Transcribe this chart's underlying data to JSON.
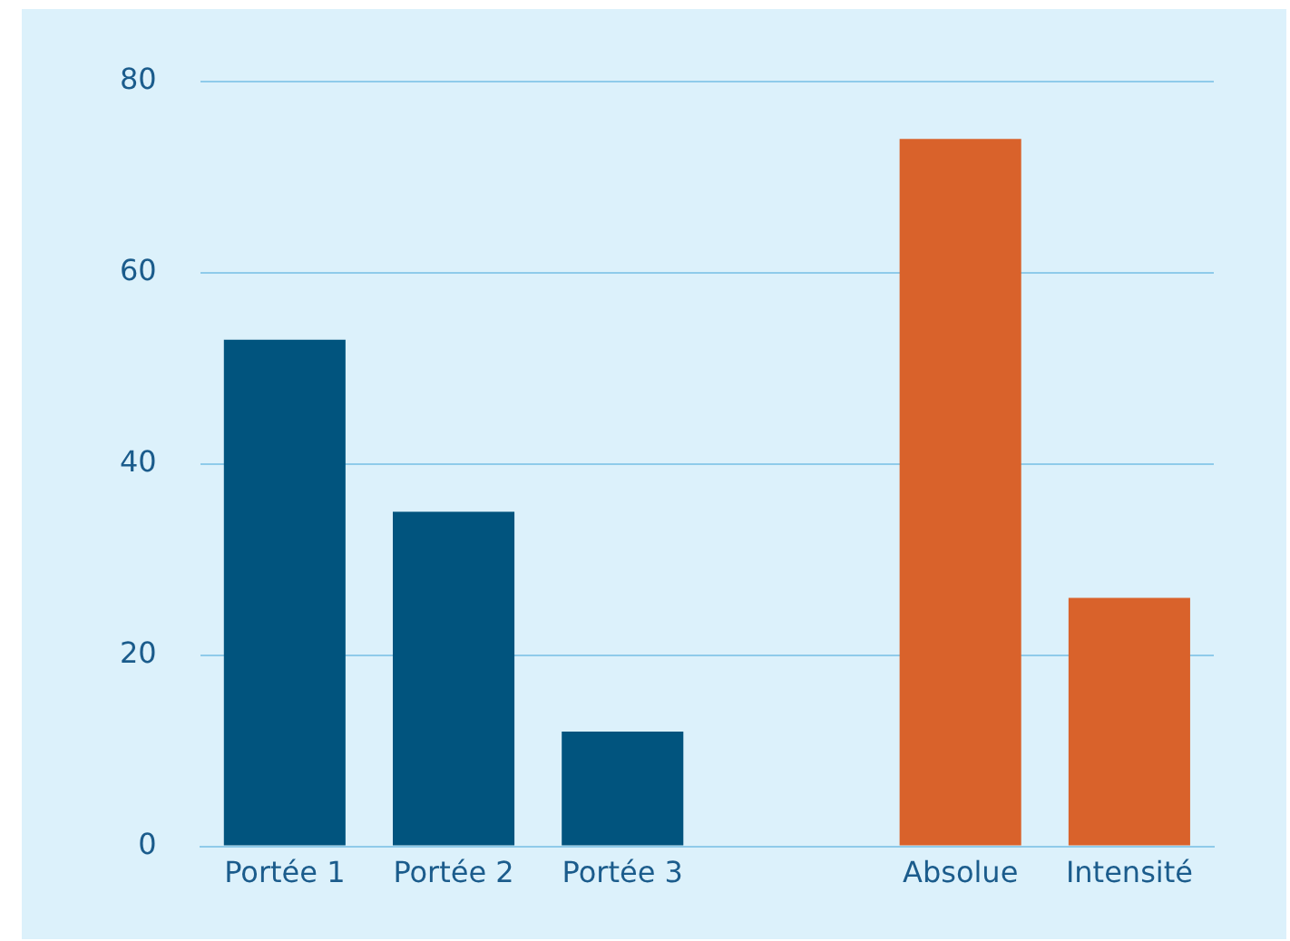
{
  "chart_data": {
    "type": "bar",
    "categories": [
      "Portée 1",
      "Portée 2",
      "Portée 3",
      null,
      "Absolue",
      "Intensité"
    ],
    "values": [
      53,
      35,
      12,
      null,
      74,
      26
    ],
    "colors": [
      "#01547e",
      "#01547e",
      "#01547e",
      "#01547e",
      "#d9622b",
      "#d9622b"
    ],
    "ylim": [
      0,
      80
    ],
    "yticks": [
      0,
      20,
      40,
      60,
      80
    ],
    "grid": "y",
    "legend": false
  }
}
